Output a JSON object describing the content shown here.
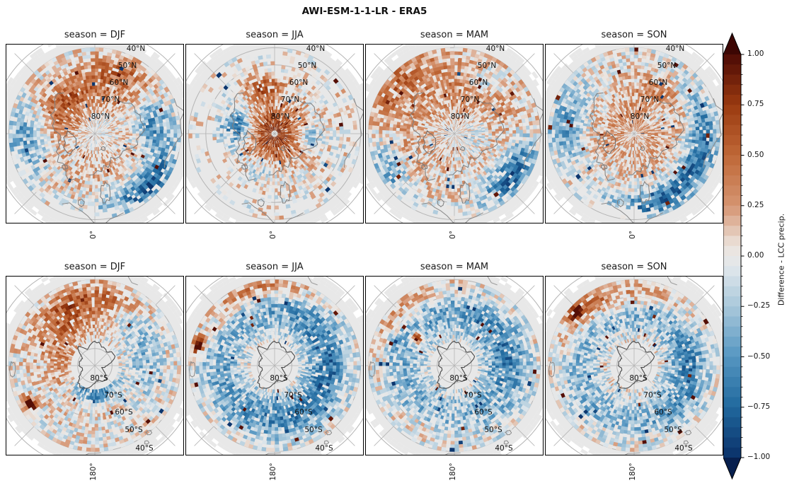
{
  "figure": {
    "title": "AWI-ESM-1-1-LR - ERA5"
  },
  "colorbar": {
    "label": "Difference - LCC precip.",
    "ticks": [
      "1.00",
      "0.75",
      "0.50",
      "0.25",
      "0.00",
      "−0.25",
      "−0.50",
      "−0.75",
      "−1.00"
    ],
    "tick_values": [
      1.0,
      0.75,
      0.5,
      0.25,
      0.0,
      -0.25,
      -0.5,
      -0.75,
      -1.0
    ],
    "minor_tick_step": 0.05,
    "vmin": -1.0,
    "vmax": 1.0,
    "bins": 40,
    "stops": [
      [
        -1.0,
        "#0a3069"
      ],
      [
        -0.75,
        "#20689d"
      ],
      [
        -0.5,
        "#5596c1"
      ],
      [
        -0.25,
        "#a9c8db"
      ],
      [
        -0.05,
        "#e2e8ec"
      ],
      [
        0.05,
        "#ece4dd"
      ],
      [
        0.25,
        "#d59471"
      ],
      [
        0.5,
        "#bf6737"
      ],
      [
        0.75,
        "#9a3a10"
      ],
      [
        1.0,
        "#4c0a05"
      ]
    ],
    "arrow_top_color": "#3c0603",
    "arrow_bottom_color": "#071f4e"
  },
  "rows": [
    {
      "hemisphere": "north",
      "meridian_label": "0°",
      "coast_seed": 42,
      "colat": [
        2,
        50
      ],
      "lat_labels": [
        "40°N",
        "50°N",
        "60°N",
        "70°N",
        "80°N"
      ],
      "panels": [
        {
          "title": "season = DJF",
          "season": "DJF",
          "seed": 101,
          "base": 0.0,
          "blobs": [
            {
              "a": 345,
              "lat": 63,
              "sa": 50,
              "sl": 9,
              "amp": 0.45
            },
            {
              "a": 25,
              "lat": 50,
              "sa": 20,
              "sl": 6,
              "amp": 0.35
            },
            {
              "a": 80,
              "lat": 56,
              "sa": 18,
              "sl": 7,
              "amp": -0.55
            },
            {
              "a": 135,
              "lat": 47,
              "sa": 25,
              "sl": 6,
              "amp": -0.75
            },
            {
              "a": 265,
              "lat": 50,
              "sa": 20,
              "sl": 8,
              "amp": -0.5
            },
            {
              "a": 300,
              "lat": 70,
              "sa": 25,
              "sl": 8,
              "amp": 0.3
            },
            {
              "a": 180,
              "lat": 70,
              "sa": 40,
              "sl": 10,
              "amp": 0.15
            }
          ],
          "mask_base": 0.12,
          "mask_blobs": [
            {
              "a": 195,
              "lat": 42,
              "sa": 35,
              "sl": 4,
              "p": 0.8
            },
            {
              "a": 150,
              "lat": 80,
              "sa": 40,
              "sl": 8,
              "p": 0.35
            },
            {
              "a": 0,
              "lat": 88,
              "sa": 180,
              "sl": 6,
              "p": 0.5
            }
          ]
        },
        {
          "title": "season = JJA",
          "season": "JJA",
          "seed": 202,
          "base": 0.0,
          "blobs": [
            {
              "a": 0,
              "lat": 90,
              "sa": 360,
              "sl": 12,
              "amp": 0.8
            },
            {
              "a": 350,
              "lat": 62,
              "sa": 15,
              "sl": 5,
              "amp": 0.6
            },
            {
              "a": 280,
              "lat": 68,
              "sa": 18,
              "sl": 6,
              "amp": -0.85
            },
            {
              "a": 95,
              "lat": 70,
              "sa": 12,
              "sl": 5,
              "amp": -0.45
            },
            {
              "a": 200,
              "lat": 68,
              "sa": 15,
              "sl": 5,
              "amp": -0.3
            }
          ],
          "mask_base": 0.15,
          "mask_blobs": [
            {
              "a": 0,
              "lat": 45,
              "sa": 360,
              "sl": 8,
              "p": 0.6
            },
            {
              "a": 250,
              "lat": 55,
              "sa": 30,
              "sl": 6,
              "p": 0.5
            }
          ]
        },
        {
          "title": "season = MAM",
          "season": "MAM",
          "seed": 303,
          "base": 0.0,
          "blobs": [
            {
              "a": 0,
              "lat": 62,
              "sa": 100,
              "sl": 14,
              "amp": 0.3
            },
            {
              "a": 125,
              "lat": 49,
              "sa": 22,
              "sl": 7,
              "amp": -0.85
            },
            {
              "a": 240,
              "lat": 47,
              "sa": 18,
              "sl": 6,
              "amp": -0.5
            },
            {
              "a": 30,
              "lat": 55,
              "sa": 12,
              "sl": 5,
              "amp": -0.35
            },
            {
              "a": 90,
              "lat": 75,
              "sa": 30,
              "sl": 8,
              "amp": -0.2
            },
            {
              "a": 310,
              "lat": 45,
              "sa": 20,
              "sl": 6,
              "amp": 0.35
            }
          ],
          "mask_base": 0.12,
          "mask_blobs": [
            {
              "a": 185,
              "lat": 43,
              "sa": 30,
              "sl": 4,
              "p": 0.85
            },
            {
              "a": 0,
              "lat": 88,
              "sa": 180,
              "sl": 5,
              "p": 0.4
            }
          ]
        },
        {
          "title": "season = SON",
          "season": "SON",
          "seed": 404,
          "base": 0.0,
          "blobs": [
            {
              "a": 0,
              "lat": 80,
              "sa": 180,
              "sl": 10,
              "amp": 0.25
            },
            {
              "a": 40,
              "lat": 60,
              "sa": 30,
              "sl": 8,
              "amp": 0.3
            },
            {
              "a": 105,
              "lat": 50,
              "sa": 40,
              "sl": 6,
              "amp": -0.7
            },
            {
              "a": 170,
              "lat": 47,
              "sa": 25,
              "sl": 5,
              "amp": -0.5
            },
            {
              "a": 280,
              "lat": 50,
              "sa": 22,
              "sl": 7,
              "amp": -0.45
            },
            {
              "a": 55,
              "lat": 72,
              "sa": 12,
              "sl": 5,
              "amp": -0.3
            }
          ],
          "mask_base": 0.12,
          "mask_blobs": [
            {
              "a": 195,
              "lat": 43,
              "sa": 28,
              "sl": 4,
              "p": 0.8
            }
          ]
        }
      ]
    },
    {
      "hemisphere": "south",
      "meridian_label": "180°",
      "coast_seed": 77,
      "colat": [
        14,
        50
      ],
      "lat_labels": [
        "80°S",
        "70°S",
        "60°S",
        "50°S",
        "40°S"
      ],
      "panels": [
        {
          "title": "season = DJF",
          "season": "DJF",
          "seed": 505,
          "base": 0.0,
          "blobs": [
            {
              "a": 0,
              "lat": -52,
              "sa": 38,
              "sl": 7,
              "amp": 0.55
            },
            {
              "a": 320,
              "lat": -62,
              "sa": 25,
              "sl": 8,
              "amp": 0.35
            },
            {
              "a": 45,
              "lat": -55,
              "sa": 20,
              "sl": 7,
              "amp": -0.4
            },
            {
              "a": 180,
              "lat": -74,
              "sa": 35,
              "sl": 4,
              "amp": -0.6
            },
            {
              "a": 270,
              "lat": -70,
              "sa": 30,
              "sl": 6,
              "amp": 0.3
            },
            {
              "a": 90,
              "lat": -60,
              "sa": 25,
              "sl": 8,
              "amp": -0.3
            },
            {
              "a": 240,
              "lat": -46,
              "sa": 4,
              "sl": 2,
              "amp": 1.4
            }
          ],
          "mask_base": 0.15,
          "mask_blobs": []
        },
        {
          "title": "season = JJA",
          "season": "JJA",
          "seed": 606,
          "base": 0.0,
          "blobs": [
            {
              "a": 0,
              "lat": -58,
              "sa": 360,
              "sl": 9,
              "amp": -0.4
            },
            {
              "a": 90,
              "lat": -60,
              "sa": 40,
              "sl": 8,
              "amp": -0.3
            },
            {
              "a": 180,
              "lat": -62,
              "sa": 40,
              "sl": 8,
              "amp": -0.2
            },
            {
              "a": 350,
              "lat": -44,
              "sa": 25,
              "sl": 4,
              "amp": 0.45
            },
            {
              "a": 285,
              "lat": -44,
              "sa": 5,
              "sl": 2,
              "amp": 1.2
            },
            {
              "a": 315,
              "lat": -50,
              "sa": 20,
              "sl": 5,
              "amp": 0.2
            }
          ],
          "mask_base": 0.15,
          "mask_blobs": []
        },
        {
          "title": "season = MAM",
          "season": "MAM",
          "seed": 707,
          "base": 0.0,
          "blobs": [
            {
              "a": 0,
              "lat": -60,
              "sa": 360,
              "sl": 9,
              "amp": -0.38
            },
            {
              "a": 80,
              "lat": -58,
              "sa": 35,
              "sl": 8,
              "amp": -0.28
            },
            {
              "a": 315,
              "lat": -45,
              "sa": 25,
              "sl": 4,
              "amp": 0.32
            },
            {
              "a": 307,
              "lat": -63,
              "sa": 5,
              "sl": 2,
              "amp": 1.3
            },
            {
              "a": 200,
              "lat": -50,
              "sa": 25,
              "sl": 5,
              "amp": 0.15
            }
          ],
          "mask_base": 0.15,
          "mask_blobs": []
        },
        {
          "title": "season = SON",
          "season": "SON",
          "seed": 808,
          "base": 0.0,
          "blobs": [
            {
              "a": 0,
              "lat": -58,
              "sa": 360,
              "sl": 8,
              "amp": -0.35
            },
            {
              "a": 100,
              "lat": -58,
              "sa": 35,
              "sl": 8,
              "amp": -0.3
            },
            {
              "a": 330,
              "lat": -48,
              "sa": 28,
              "sl": 6,
              "amp": 0.5
            },
            {
              "a": 312,
              "lat": -44,
              "sa": 4,
              "sl": 2,
              "amp": 1.3
            },
            {
              "a": 30,
              "lat": -50,
              "sa": 20,
              "sl": 5,
              "amp": 0.2
            }
          ],
          "mask_base": 0.15,
          "mask_blobs": []
        }
      ]
    }
  ],
  "chart_data": {
    "type": "heatmap",
    "title": "AWI-ESM-1-1-LR - ERA5",
    "colorbar_label": "Difference - LCC precip.",
    "value_range": [
      -1.0,
      1.0
    ],
    "colorbar_ticks": [
      1.0,
      0.75,
      0.5,
      0.25,
      0.0,
      -0.25,
      -0.5,
      -0.75,
      -1.0
    ],
    "projection": "polar stereographic, pixelated lat-lon grid cells, grey = no data",
    "facet_rows": [
      "Northern Hemisphere (0° meridian at bottom)",
      "Southern Hemisphere (180° meridian at bottom)"
    ],
    "facet_cols": [
      "season = DJF",
      "season = JJA",
      "season = MAM",
      "season = SON"
    ],
    "lat_rings_north": [
      "40°N",
      "50°N",
      "60°N",
      "70°N",
      "80°N"
    ],
    "lat_rings_south": [
      "80°S",
      "70°S",
      "60°S",
      "50°S",
      "40°S"
    ],
    "panel_summaries": [
      {
        "row": "north",
        "season": "DJF",
        "summary": "Mixed weak differences; orange band ~55–75°N in Atlantic/European sector; strong blue band ~45–55°N lower right; blue patches at left and right edges."
      },
      {
        "row": "north",
        "season": "JJA",
        "summary": "Strong positive (dark red) core over central Arctic poleward of ~70°N; blue patch near Greenland/Baffin; sparse data with large grey gaps south of ~60°N."
      },
      {
        "row": "north",
        "season": "MAM",
        "summary": "Weak orange over much of the Arctic; pronounced dark-blue cluster ~45–60°N lower right; blue patches lower left; grey gap at bottom edge."
      },
      {
        "row": "north",
        "season": "SON",
        "summary": "Light orange over central Arctic; broad blue ring ~45–60°N along right and bottom; scattered dark-red specks upper left."
      },
      {
        "row": "south",
        "season": "DJF",
        "summary": "Orange band ~45–60°S at top; mixed red/blue ring near Antarctic coast; dark-blue cells near 75°S at bottom; isolated dark-red cell lower left."
      },
      {
        "row": "south",
        "season": "JJA",
        "summary": "Predominantly negative (blue) ring ~45–70°S, strongest on right; light orange at outer top-left; grey (no data) over Antarctic interior."
      },
      {
        "row": "south",
        "season": "MAM",
        "summary": "Moderate blue ring around Antarctica; orange speckle near 45°S upper left; small dark-red spot west of the peninsula."
      },
      {
        "row": "south",
        "season": "SON",
        "summary": "Blue ring ~50–70°S strongest on right; orange band ~40–55°S upper left with a dark-red speck."
      }
    ]
  }
}
